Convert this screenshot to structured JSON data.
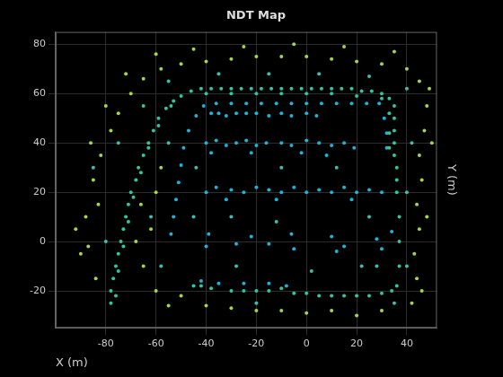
{
  "chart_data": {
    "type": "scatter",
    "title": "NDT Map",
    "x_label": "X (m)",
    "y_label": "Y (m)",
    "xlim": [
      -100,
      52
    ],
    "xticks": [
      -80,
      -60,
      -40,
      -20,
      0,
      20,
      40
    ],
    "ylim": [
      -35,
      85
    ],
    "yticks": [
      -20,
      0,
      20,
      40,
      60,
      80
    ],
    "grid": true,
    "series": [
      {
        "color": "#2fc7a3",
        "marker": "circle",
        "x": [
          -78,
          -78,
          -77,
          -76,
          -75,
          -74,
          -73,
          -72,
          -71,
          -70,
          -68,
          -67,
          -65,
          -63,
          -61,
          -59,
          -56,
          -53,
          -50,
          -46,
          -42,
          -38,
          -34,
          -30,
          -26,
          -22,
          -18,
          -14,
          -10,
          -6,
          -2,
          2,
          6,
          10,
          14,
          18,
          22,
          26,
          30,
          33,
          35,
          35,
          35,
          35,
          35,
          36,
          36,
          36,
          37,
          37,
          37,
          36,
          -45,
          -42,
          -38,
          -30,
          -25,
          -20,
          -15,
          -10,
          -5,
          0,
          5,
          10,
          15,
          20,
          25,
          30,
          34,
          -76,
          -75,
          -73,
          -71,
          -69,
          -66,
          -63,
          -59,
          -54,
          -40,
          -30,
          -20,
          -10,
          0,
          10,
          20,
          30,
          33,
          33,
          33
        ],
        "values": [
          -25,
          -20,
          -15,
          -10,
          -5,
          0,
          5,
          10,
          15,
          20,
          25,
          30,
          35,
          40,
          45,
          50,
          54,
          57,
          59,
          61,
          62,
          62,
          62,
          62,
          62,
          62,
          62,
          62,
          62,
          62,
          62,
          62,
          62,
          62,
          62,
          62,
          61,
          61,
          60,
          58,
          55,
          50,
          45,
          40,
          35,
          30,
          25,
          20,
          10,
          0,
          -10,
          -18,
          -18,
          -18,
          -19,
          -20,
          -20,
          -20,
          -20,
          -19,
          -21,
          -21,
          -22,
          -22,
          -22,
          -22,
          -22,
          -21,
          -20,
          -22,
          -12,
          -2,
          8,
          18,
          28,
          38,
          47,
          55,
          60,
          60,
          60,
          60,
          60,
          60,
          59,
          58,
          52,
          44,
          38
        ]
      },
      {
        "color": "#1db4d8",
        "marker": "circle",
        "x": [
          -54,
          -53,
          -52,
          -51,
          -50,
          -49,
          -47,
          -44,
          -41,
          -36,
          -30,
          -24,
          -18,
          -12,
          -6,
          0,
          6,
          12,
          18,
          24,
          29,
          31,
          32,
          32,
          -38,
          -35,
          -32,
          -28,
          -24,
          -20,
          -15,
          -10,
          -6,
          0,
          4,
          -40,
          -36,
          -32,
          -28,
          -24,
          -20,
          -16,
          -10,
          -6,
          0,
          5,
          10,
          15,
          19,
          -38,
          -22,
          -2,
          8,
          -40,
          -36,
          -30,
          -25,
          -20,
          -15,
          -10,
          -5,
          0,
          5,
          10,
          15,
          20,
          25,
          30,
          -32,
          -12,
          18,
          -40,
          -39,
          -28,
          -22,
          -15,
          -6,
          -5,
          10,
          12,
          15,
          28,
          30,
          34,
          -42,
          -35,
          -25,
          -15,
          -8
        ],
        "values": [
          3,
          10,
          17,
          24,
          31,
          38,
          45,
          51,
          55,
          56,
          56,
          56,
          56,
          56,
          56,
          56,
          56,
          56,
          56,
          56,
          56,
          50,
          44,
          38,
          52,
          52,
          51,
          52,
          52,
          52,
          51,
          52,
          51,
          52,
          51,
          40,
          41,
          39,
          40,
          41,
          39,
          40,
          40,
          39,
          41,
          40,
          39,
          40,
          38,
          36,
          36,
          36,
          35,
          20,
          22,
          21,
          20,
          22,
          21,
          20,
          22,
          20,
          21,
          20,
          22,
          20,
          21,
          20,
          17,
          17,
          17,
          -2,
          3,
          -1,
          2,
          -1,
          3,
          -3,
          2,
          -4,
          -2,
          1,
          -3,
          4,
          -16,
          -17,
          -17,
          -17,
          -18
        ]
      },
      {
        "color": "#a0d84a",
        "marker": "circle",
        "x": [
          -90,
          -88,
          -85,
          -82,
          -78,
          -75,
          -70,
          -65,
          -58,
          -50,
          -40,
          -30,
          -20,
          -10,
          0,
          10,
          20,
          30,
          40,
          45,
          48,
          47,
          45,
          46,
          44,
          45,
          43,
          44,
          42,
          30,
          20,
          10,
          0,
          -10,
          -20,
          -30,
          -40,
          -50,
          -60,
          -65,
          -68,
          -62,
          -60,
          -58,
          -84,
          -92,
          -80,
          -72,
          -60,
          -45,
          -25,
          -5,
          15,
          35,
          49,
          50,
          48,
          46,
          -55,
          -86,
          -83,
          -87,
          -66
        ],
        "values": [
          -5,
          10,
          25,
          35,
          45,
          52,
          60,
          66,
          70,
          72,
          73,
          74,
          75,
          75,
          75,
          74,
          73,
          72,
          70,
          65,
          55,
          45,
          35,
          25,
          15,
          5,
          -5,
          -15,
          -25,
          -28,
          -30,
          -28,
          -29,
          -28,
          -28,
          -27,
          -26,
          -22,
          -20,
          -10,
          0,
          5,
          20,
          30,
          -15,
          5,
          55,
          68,
          76,
          78,
          79,
          80,
          79,
          77,
          62,
          40,
          10,
          -20,
          -26,
          40,
          15,
          -2,
          15
        ]
      },
      {
        "color": "#3bbfae",
        "marker": "circle",
        "x": [
          -85,
          -80,
          -75,
          -65,
          -55,
          -35,
          -15,
          5,
          25,
          40,
          42,
          40,
          40,
          35,
          -20,
          -58,
          -62,
          -55,
          -45,
          -44,
          25,
          22,
          -30,
          -10,
          12,
          -12,
          2,
          -28,
          28
        ],
        "values": [
          30,
          0,
          40,
          55,
          65,
          68,
          68,
          68,
          67,
          62,
          40,
          20,
          -10,
          -25,
          -25,
          -10,
          10,
          40,
          10,
          30,
          10,
          -10,
          10,
          30,
          30,
          8,
          -12,
          -10,
          -10
        ]
      }
    ]
  }
}
